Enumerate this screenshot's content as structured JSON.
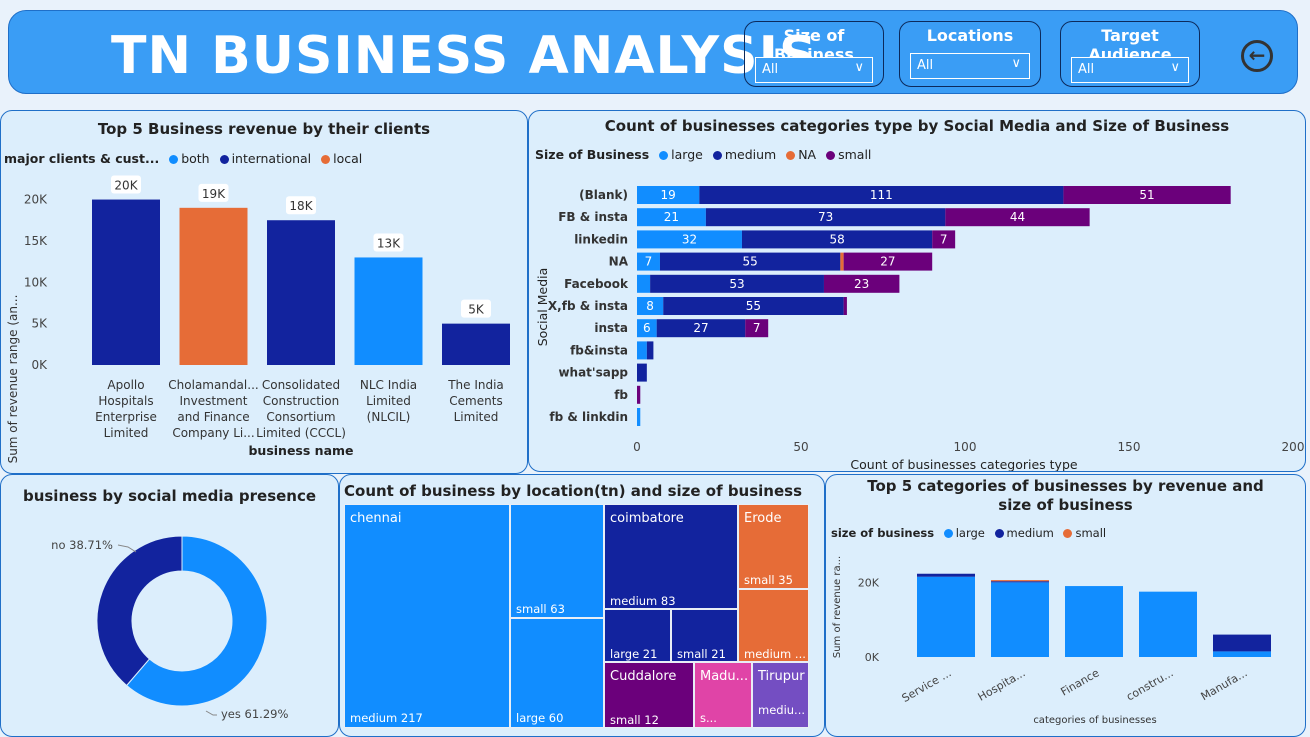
{
  "header": {
    "title": "TN BUSINESS ANALYSIS"
  },
  "slicers": [
    {
      "label": "Size of Business",
      "value": "All"
    },
    {
      "label": "Locations",
      "value": "All"
    },
    {
      "label": "Target Audience",
      "value": "All"
    }
  ],
  "colors": {
    "large": "#118dff",
    "medium": "#12239e",
    "small": "#6b007b",
    "NA": "#e66c37",
    "local": "#e66c37",
    "erode": "#e66c37",
    "cuddalore": "#6b007b",
    "madurai": "#e044a7",
    "tirupur": "#744ec2"
  },
  "panel1": {
    "title": "Top 5 Business revenue by their clients",
    "legend_title": "major clients & cust...",
    "legend": [
      {
        "name": "both",
        "color": "#118dff"
      },
      {
        "name": "international",
        "color": "#12239e"
      },
      {
        "name": "local",
        "color": "#e66c37"
      }
    ],
    "ylabel": "Sum of revenue range (an...",
    "xlabel": "business name",
    "yticks": [
      "0K",
      "5K",
      "10K",
      "15K",
      "20K"
    ],
    "chart_data": {
      "type": "bar",
      "categories": [
        "Apollo Hospitals Enterprise Limited",
        "Cholamandal... Investment and Finance Company Li...",
        "Consolidated Construction Consortium Limited (CCCL)",
        "NLC India Limited (NLCIL)",
        "The India Cements Limited"
      ],
      "category_lines": [
        [
          "Apollo",
          "Hospitals",
          "Enterprise",
          "Limited"
        ],
        [
          "Cholamandal...",
          "Investment",
          "and Finance",
          "Company Li..."
        ],
        [
          "Consolidated",
          "Construction",
          "Consortium",
          "Limited (CCCL)"
        ],
        [
          "NLC India",
          "Limited",
          "(NLCIL)"
        ],
        [
          "The India",
          "Cements",
          "Limited"
        ]
      ],
      "values": [
        20000,
        19000,
        17500,
        13000,
        5000
      ],
      "data_labels": [
        "20K",
        "19K",
        "18K",
        "13K",
        "5K"
      ],
      "groups": [
        "international",
        "local",
        "international",
        "both",
        "international"
      ],
      "ylim": [
        0,
        22000
      ]
    }
  },
  "panel2": {
    "title": "Count of businesses categories type by Social Media and Size of Business",
    "legend_title": "Size of Business",
    "legend": [
      {
        "name": "large",
        "color": "#118dff"
      },
      {
        "name": "medium",
        "color": "#12239e"
      },
      {
        "name": "NA",
        "color": "#e66c37"
      },
      {
        "name": "small",
        "color": "#6b007b"
      }
    ],
    "ylabel": "Social Media",
    "xlabel": "Count of businesses categories type",
    "xticks": [
      "0",
      "50",
      "100",
      "150",
      "200"
    ],
    "chart_data": {
      "type": "bar",
      "orientation": "horizontal-stacked",
      "categories": [
        "(Blank)",
        "FB & insta",
        "linkedin",
        "NA",
        "Facebook",
        "X,fb & insta",
        "insta",
        "fb&insta",
        "what'sapp",
        "fb",
        "fb & linkdin"
      ],
      "series": [
        {
          "name": "large",
          "values": [
            19,
            21,
            32,
            7,
            4,
            8,
            6,
            3,
            0,
            0,
            1
          ]
        },
        {
          "name": "medium",
          "values": [
            111,
            73,
            58,
            55,
            53,
            55,
            27,
            2,
            3,
            0,
            0
          ]
        },
        {
          "name": "NA",
          "values": [
            0,
            0,
            0,
            1,
            0,
            0,
            0,
            0,
            0,
            0,
            0
          ]
        },
        {
          "name": "small",
          "values": [
            51,
            44,
            7,
            27,
            23,
            1,
            7,
            0,
            0,
            1,
            0
          ]
        }
      ],
      "xlim": [
        0,
        200
      ]
    }
  },
  "panel3": {
    "title": "business by social media presence",
    "chart_data": {
      "type": "pie",
      "style": "donut",
      "labels": [
        "yes",
        "no"
      ],
      "values": [
        61.29,
        38.71
      ],
      "data_labels": [
        "yes 61.29%",
        "no 38.71%"
      ],
      "colors": [
        "#118dff",
        "#12239e"
      ]
    }
  },
  "panel4": {
    "title": "Count of business by location(tn) and size of business",
    "cells": {
      "chennai": "chennai",
      "chennai_medium": "medium 217",
      "chennai_small": "small 63",
      "chennai_large": "large 60",
      "coimbatore": "coimbatore",
      "coimbatore_medium": "medium 83",
      "coimbatore_large": "large 21",
      "coimbatore_small": "small 21",
      "erode": "Erode",
      "erode_small": "small 35",
      "erode_medium": "medium ...",
      "cuddalore": "Cuddalore",
      "cuddalore_small": "small 12",
      "madurai": "Madu...",
      "madurai_s": "s...",
      "tirupur": "Tirupur",
      "tirupur_medium": "mediu..."
    }
  },
  "panel5": {
    "title": "Top 5 categories of businesses by revenue and size of business",
    "legend_title": "size of business",
    "legend": [
      {
        "name": "large",
        "color": "#118dff"
      },
      {
        "name": "medium",
        "color": "#12239e"
      },
      {
        "name": "small",
        "color": "#e66c37"
      }
    ],
    "ylabel": "Sum of revenue ra...",
    "xlabel": "categories of businesses",
    "yticks": [
      "0K",
      "20K"
    ],
    "chart_data": {
      "type": "bar",
      "orientation": "vertical-stacked",
      "categories": [
        "Service ...",
        "Hospita...",
        "Finance",
        "constru...",
        "Manufa..."
      ],
      "series": [
        {
          "name": "large",
          "values": [
            21500,
            20000,
            19000,
            17500,
            1500
          ]
        },
        {
          "name": "medium",
          "values": [
            800,
            300,
            0,
            0,
            4500
          ]
        },
        {
          "name": "small",
          "values": [
            0,
            300,
            0,
            0,
            0
          ]
        }
      ],
      "ylim": [
        0,
        30000
      ]
    }
  }
}
